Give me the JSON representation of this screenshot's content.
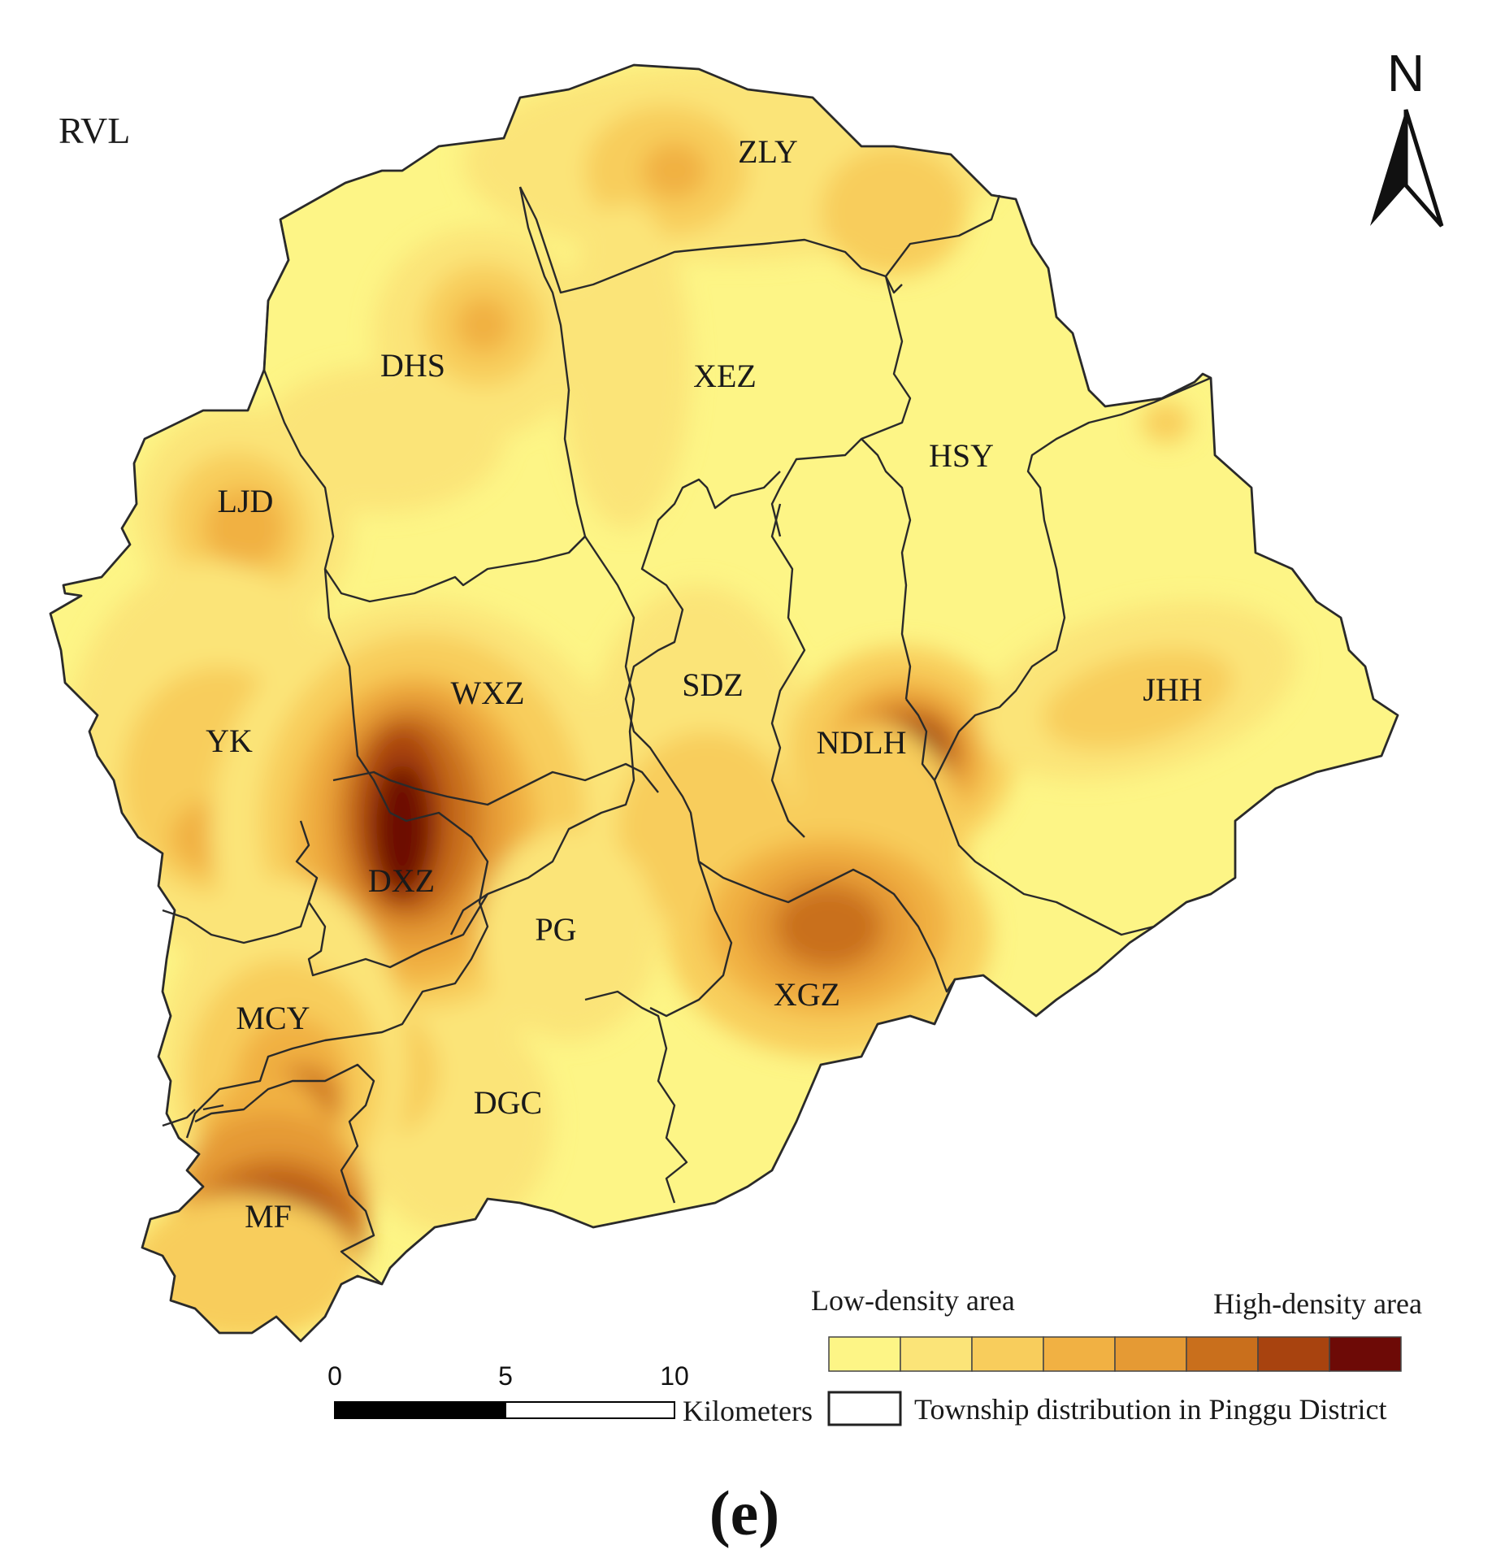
{
  "corner_label": "RVL",
  "north_label": "N",
  "caption": "(e)",
  "townships": [
    {
      "name": "ZLY"
    },
    {
      "name": "DHS"
    },
    {
      "name": "XEZ"
    },
    {
      "name": "HSY"
    },
    {
      "name": "LJD"
    },
    {
      "name": "WXZ"
    },
    {
      "name": "SDZ"
    },
    {
      "name": "JHH"
    },
    {
      "name": "YK"
    },
    {
      "name": "NDLH"
    },
    {
      "name": "DXZ"
    },
    {
      "name": "PG"
    },
    {
      "name": "XGZ"
    },
    {
      "name": "MCY"
    },
    {
      "name": "DGC"
    },
    {
      "name": "MF"
    }
  ],
  "legend": {
    "low_label": "Low-density area",
    "high_label": "High-density area",
    "classes": [
      "#fdf586",
      "#fbe478",
      "#f8cd5c",
      "#f1b143",
      "#e59a34",
      "#c96f1c",
      "#a8430f",
      "#6d0a06"
    ],
    "boundary_label": "Township distribution in Pinggu District"
  },
  "scale_bar": {
    "ticks": [
      "0",
      "5",
      "10"
    ],
    "unit": "Kilometers"
  },
  "colors": {
    "low": "#fdf586",
    "high": "#6d0a06",
    "boundary": "#2a2a2a"
  }
}
